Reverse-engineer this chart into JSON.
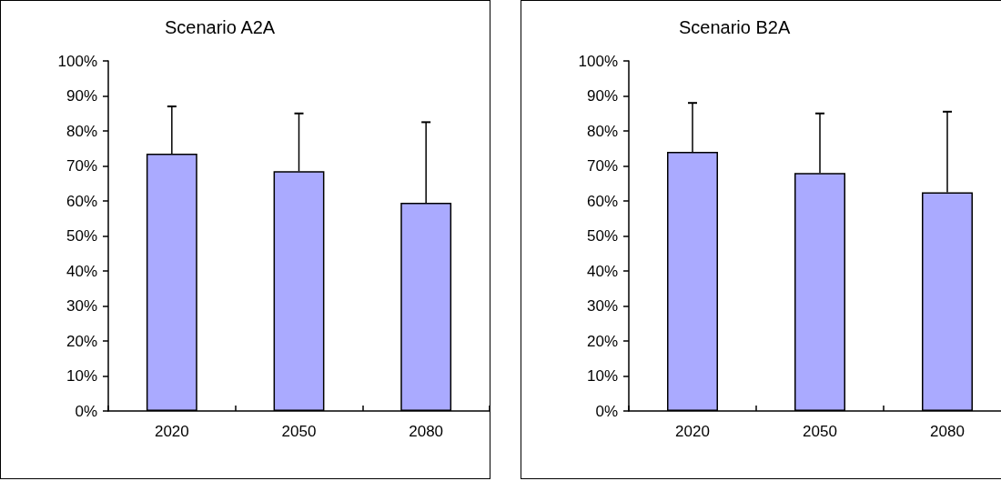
{
  "chart_data": [
    {
      "type": "bar",
      "title": "Scenario A2A",
      "categories": [
        "2020",
        "2050",
        "2080"
      ],
      "values": [
        73.5,
        68.5,
        59.5
      ],
      "color": "#aaaaff",
      "errors": [
        [
          73.5,
          87
        ],
        [
          68.5,
          85
        ],
        [
          59.5,
          82.5
        ]
      ],
      "ylim": [
        0,
        100
      ],
      "yticks": [
        {
          "value": 0,
          "label": "0%"
        },
        {
          "value": 10,
          "label": "10%"
        },
        {
          "value": 20,
          "label": "20%"
        },
        {
          "value": 30,
          "label": "30%"
        },
        {
          "value": 40,
          "label": "40%"
        },
        {
          "value": 50,
          "label": "50%"
        },
        {
          "value": 60,
          "label": "60%"
        },
        {
          "value": 70,
          "label": "70%"
        },
        {
          "value": 80,
          "label": "80%"
        },
        {
          "value": 90,
          "label": "90%"
        },
        {
          "value": 100,
          "label": "100%"
        }
      ]
    },
    {
      "type": "bar",
      "title": "Scenario B2A",
      "categories": [
        "2020",
        "2050",
        "2080"
      ],
      "values": [
        74,
        68,
        62.5
      ],
      "color": "#aaaaff",
      "errors": [
        [
          74,
          88
        ],
        [
          68,
          85
        ],
        [
          62.5,
          85.5
        ]
      ],
      "ylim": [
        0,
        100
      ],
      "yticks": [
        {
          "value": 0,
          "label": "0%"
        },
        {
          "value": 10,
          "label": "10%"
        },
        {
          "value": 20,
          "label": "20%"
        },
        {
          "value": 30,
          "label": "30%"
        },
        {
          "value": 40,
          "label": "40%"
        },
        {
          "value": 50,
          "label": "50%"
        },
        {
          "value": 60,
          "label": "60%"
        },
        {
          "value": 70,
          "label": "70%"
        },
        {
          "value": 80,
          "label": "80%"
        },
        {
          "value": 90,
          "label": "90%"
        },
        {
          "value": 100,
          "label": "100%"
        }
      ]
    }
  ]
}
